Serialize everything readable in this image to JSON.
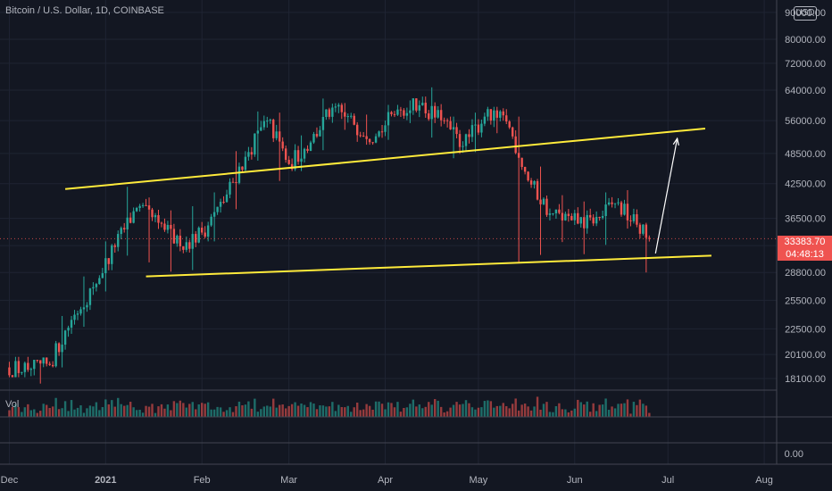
{
  "chart_title": "Bitcoin / U.S. Dollar, 1D, COINBASE",
  "currency_badge": "USD",
  "volume_label": "Vol",
  "last_price": "33383.70",
  "countdown": "04:48:13",
  "colors": {
    "up": "#26a69a",
    "down": "#ef5350",
    "trendline": "#ffeb3b",
    "arrow": "#ffffff",
    "background": "#131722"
  },
  "chart_data": {
    "type": "candlestick",
    "x_ticks": [
      "Dec",
      "2021",
      "Feb",
      "Mar",
      "Apr",
      "May",
      "Jun",
      "Jul",
      "Aug"
    ],
    "y_ticks": [
      "18100.00",
      "20100.00",
      "22500.00",
      "25500.00",
      "28800.00",
      "32400.00",
      "36500.00",
      "42500.00",
      "48500.00",
      "56000.00",
      "64000.00",
      "72000.00",
      "80000.00",
      "90000.00"
    ],
    "volume_axis_tick": "0.00",
    "ylim": [
      17000,
      95000
    ],
    "y_scale": "log",
    "xlim": [
      "2020-11-28",
      "2021-08-05"
    ],
    "candles_weekly": [
      {
        "week": "2020-12-01",
        "open": 19000,
        "high": 19900,
        "low": 18200,
        "close": 18800
      },
      {
        "week": "2020-12-08",
        "open": 18800,
        "high": 19500,
        "low": 17700,
        "close": 19200
      },
      {
        "week": "2020-12-15",
        "open": 19200,
        "high": 23800,
        "low": 19000,
        "close": 23400
      },
      {
        "week": "2020-12-22",
        "open": 23400,
        "high": 28300,
        "low": 22700,
        "close": 27000
      },
      {
        "week": "2020-12-29",
        "open": 27000,
        "high": 33000,
        "low": 26500,
        "close": 32200
      },
      {
        "week": "2021-01-05",
        "open": 32200,
        "high": 41900,
        "low": 31000,
        "close": 38200
      },
      {
        "week": "2021-01-12",
        "open": 38200,
        "high": 40000,
        "low": 30100,
        "close": 35800
      },
      {
        "week": "2021-01-19",
        "open": 35800,
        "high": 37800,
        "low": 28900,
        "close": 32300
      },
      {
        "week": "2021-01-26",
        "open": 32300,
        "high": 38500,
        "low": 29100,
        "close": 34300
      },
      {
        "week": "2021-02-02",
        "open": 34300,
        "high": 40900,
        "low": 33000,
        "close": 39200
      },
      {
        "week": "2021-02-09",
        "open": 39200,
        "high": 49000,
        "low": 38000,
        "close": 47800
      },
      {
        "week": "2021-02-16",
        "open": 47800,
        "high": 58300,
        "low": 47000,
        "close": 56000
      },
      {
        "week": "2021-02-23",
        "open": 56000,
        "high": 58000,
        "low": 43000,
        "close": 46300
      },
      {
        "week": "2021-03-02",
        "open": 46300,
        "high": 52500,
        "low": 44900,
        "close": 50900
      },
      {
        "week": "2021-03-09",
        "open": 50900,
        "high": 61700,
        "low": 49200,
        "close": 59300
      },
      {
        "week": "2021-03-16",
        "open": 59300,
        "high": 60500,
        "low": 53800,
        "close": 55000
      },
      {
        "week": "2021-03-23",
        "open": 55000,
        "high": 57500,
        "low": 50400,
        "close": 52300
      },
      {
        "week": "2021-03-30",
        "open": 52300,
        "high": 60000,
        "low": 51500,
        "close": 58800
      },
      {
        "week": "2021-04-06",
        "open": 58800,
        "high": 61200,
        "low": 55400,
        "close": 59900
      },
      {
        "week": "2021-04-13",
        "open": 59900,
        "high": 64800,
        "low": 52000,
        "close": 56100
      },
      {
        "week": "2021-04-20",
        "open": 56100,
        "high": 57000,
        "low": 47500,
        "close": 50100
      },
      {
        "week": "2021-04-27",
        "open": 50100,
        "high": 58000,
        "low": 48800,
        "close": 57000
      },
      {
        "week": "2021-05-04",
        "open": 57000,
        "high": 59500,
        "low": 53000,
        "close": 55800
      },
      {
        "week": "2021-05-11",
        "open": 55800,
        "high": 57000,
        "low": 30000,
        "close": 43100
      },
      {
        "week": "2021-05-18",
        "open": 43100,
        "high": 45800,
        "low": 31100,
        "close": 37300
      },
      {
        "week": "2021-05-25",
        "open": 37300,
        "high": 40400,
        "low": 32900,
        "close": 36200
      },
      {
        "week": "2021-06-01",
        "open": 36200,
        "high": 39300,
        "low": 31200,
        "close": 35700
      },
      {
        "week": "2021-06-08",
        "open": 35700,
        "high": 40900,
        "low": 32500,
        "close": 39000
      },
      {
        "week": "2021-06-15",
        "open": 39000,
        "high": 41300,
        "low": 34900,
        "close": 35500
      },
      {
        "week": "2021-06-22",
        "open": 35500,
        "high": 35800,
        "low": 28800,
        "close": 33384
      }
    ],
    "annotations": [
      {
        "type": "trendline",
        "name": "channel-top",
        "from": {
          "date": "2020-12-19",
          "price": 41500
        },
        "to": {
          "date": "2021-07-13",
          "price": 54100
        }
      },
      {
        "type": "trendline",
        "name": "channel-bottom",
        "from": {
          "date": "2021-01-14",
          "price": 28300
        },
        "to": {
          "date": "2021-07-15",
          "price": 31000
        }
      },
      {
        "type": "arrow",
        "name": "projection-arrow",
        "from": {
          "date": "2021-06-27",
          "price": 31300
        },
        "to": {
          "date": "2021-07-04",
          "price": 51800
        }
      }
    ]
  }
}
